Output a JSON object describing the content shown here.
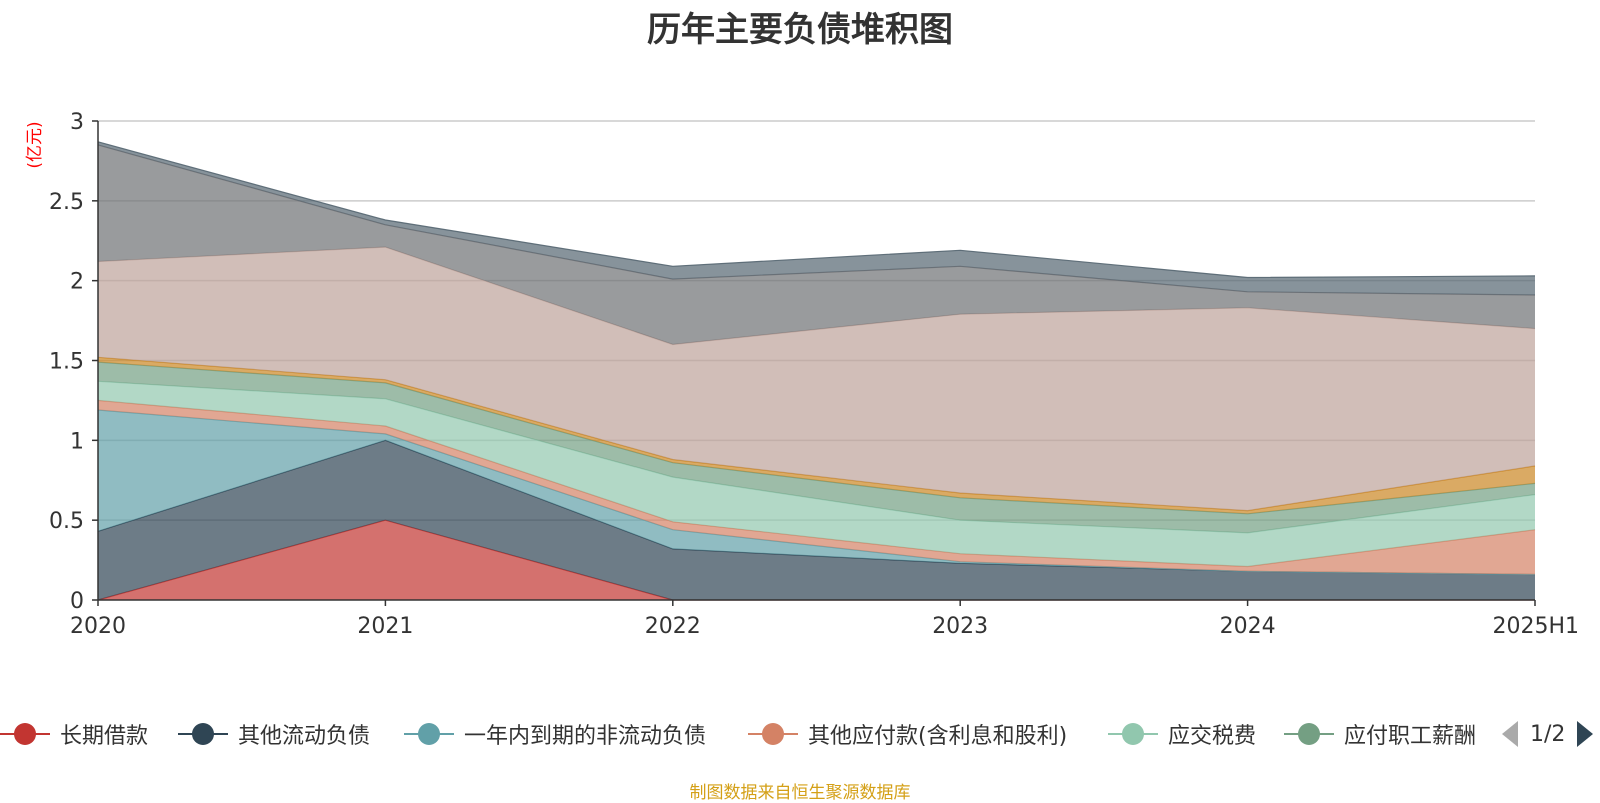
{
  "chart_data": {
    "type": "area",
    "title": "历年主要负债堆积图",
    "ylabel": "(亿元)",
    "ylim": [
      0,
      3
    ],
    "yticks": [
      "0",
      "0.5",
      "1",
      "1.5",
      "2",
      "2.5",
      "3"
    ],
    "categories": [
      "2020",
      "2021",
      "2022",
      "2023",
      "2024",
      "2025H1"
    ],
    "stacked": true,
    "grid": true,
    "legend_position": "bottom",
    "series": [
      {
        "name": "长期借款",
        "color": "#c23531",
        "values": [
          0.0,
          0.5,
          0.0,
          0.0,
          0.0,
          0.0
        ]
      },
      {
        "name": "其他流动负债",
        "color": "#2f4554",
        "values": [
          0.43,
          0.5,
          0.32,
          0.23,
          0.18,
          0.16
        ]
      },
      {
        "name": "一年内到期的非流动负债",
        "color": "#61a0a8",
        "values": [
          0.76,
          0.04,
          0.12,
          0.01,
          0.0,
          0.0
        ]
      },
      {
        "name": "其他应付款(含利息和股利)",
        "color": "#d48265",
        "values": [
          0.06,
          0.05,
          0.05,
          0.05,
          0.03,
          0.28
        ]
      },
      {
        "name": "应交税费",
        "color": "#91c7ae",
        "values": [
          0.12,
          0.17,
          0.28,
          0.21,
          0.21,
          0.22
        ]
      },
      {
        "name": "应付职工薪酬",
        "color": "#749f83",
        "values": [
          0.12,
          0.1,
          0.09,
          0.14,
          0.12,
          0.07
        ]
      },
      {
        "name": "",
        "color": "#ca8622",
        "values": [
          0.03,
          0.02,
          0.02,
          0.03,
          0.02,
          0.11
        ]
      },
      {
        "name": "",
        "color": "#bda29a",
        "values": [
          0.6,
          0.83,
          0.72,
          1.12,
          1.27,
          0.86
        ]
      },
      {
        "name": "",
        "color": "#6e7074",
        "values": [
          0.73,
          0.14,
          0.41,
          0.3,
          0.1,
          0.21
        ]
      },
      {
        "name": "",
        "color": "#546570",
        "values": [
          0.02,
          0.03,
          0.08,
          0.1,
          0.09,
          0.12
        ]
      }
    ]
  },
  "legend": {
    "visible_items": [
      "长期借款",
      "其他流动负债",
      "一年内到期的非流动负债",
      "其他应付款(含利息和股利)",
      "应交税费",
      "应付职工薪酬"
    ],
    "page_text": "1/2"
  },
  "source_note": "制图数据来自恒生聚源数据库"
}
